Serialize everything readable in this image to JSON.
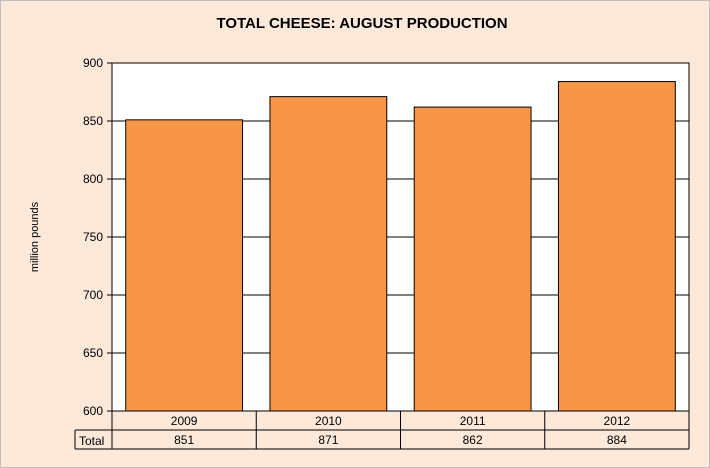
{
  "chart_data": {
    "type": "bar",
    "title": "TOTAL CHEESE: AUGUST PRODUCTION",
    "ylabel": "million pounds",
    "xlabel": "",
    "categories": [
      "2009",
      "2010",
      "2011",
      "2012"
    ],
    "series": [
      {
        "name": "Total",
        "values": [
          851,
          871,
          862,
          884
        ]
      }
    ],
    "ylim": [
      600,
      900
    ],
    "yticks": [
      600,
      650,
      700,
      750,
      800,
      850,
      900
    ],
    "grid": true,
    "data_table": {
      "row_label": "Total",
      "values": [
        "851",
        "871",
        "862",
        "884"
      ]
    },
    "colors": {
      "bar_fill": "#f79646",
      "bar_stroke": "#000000",
      "chart_background": "#fde9d9",
      "plot_background": "#ffffff"
    }
  }
}
